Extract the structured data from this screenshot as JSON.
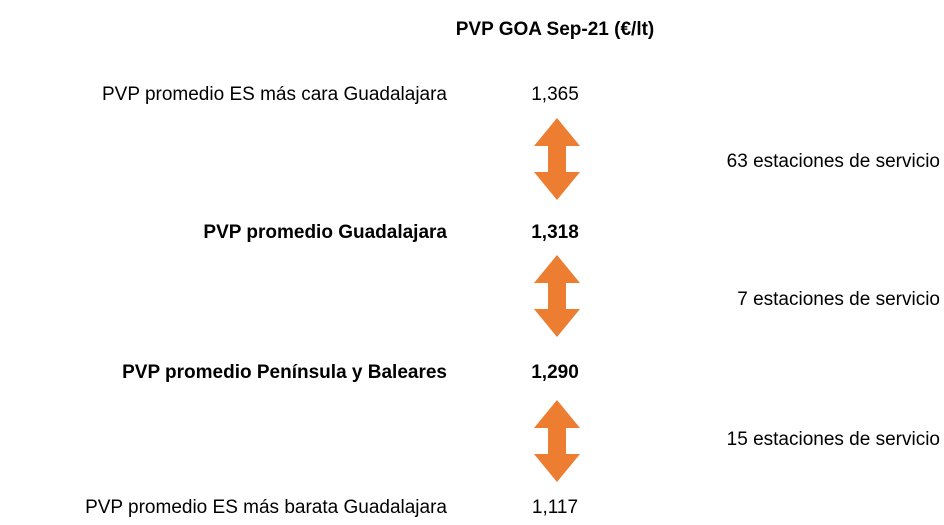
{
  "title": "PVP GOA Sep-21 (€/lt)",
  "rows": [
    {
      "label": "PVP promedio ES más cara Guadalajara",
      "value": "1,365"
    },
    {
      "label": "PVP promedio Guadalajara",
      "value": "1,318"
    },
    {
      "label": "PVP promedio Península y Baleares",
      "value": "1,290"
    },
    {
      "label": "PVP promedio ES más barata Guadalajara",
      "value": "1,117"
    }
  ],
  "gaps": [
    {
      "label": "63 estaciones de servicio"
    },
    {
      "label": "7 estaciones de servicio"
    },
    {
      "label": "15 estaciones de servicio"
    }
  ]
}
